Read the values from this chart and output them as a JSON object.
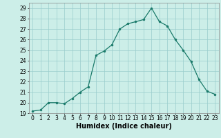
{
  "x": [
    0,
    1,
    2,
    3,
    4,
    5,
    6,
    7,
    8,
    9,
    10,
    11,
    12,
    13,
    14,
    15,
    16,
    17,
    18,
    19,
    20,
    21,
    22,
    23
  ],
  "y": [
    19.2,
    19.3,
    20.0,
    20.0,
    19.9,
    20.4,
    21.0,
    21.5,
    24.5,
    24.9,
    25.5,
    27.0,
    27.5,
    27.7,
    27.9,
    29.0,
    27.7,
    27.3,
    26.0,
    25.0,
    23.9,
    22.2,
    21.1,
    20.8
  ],
  "line_color": "#1a7a6a",
  "marker": "o",
  "marker_size": 2.2,
  "bg_color": "#cceee8",
  "grid_color": "#99cccc",
  "xlabel": "Humidex (Indice chaleur)",
  "xlim": [
    -0.5,
    23.5
  ],
  "ylim": [
    19,
    29.5
  ],
  "yticks": [
    19,
    20,
    21,
    22,
    23,
    24,
    25,
    26,
    27,
    28,
    29
  ],
  "xticks": [
    0,
    1,
    2,
    3,
    4,
    5,
    6,
    7,
    8,
    9,
    10,
    11,
    12,
    13,
    14,
    15,
    16,
    17,
    18,
    19,
    20,
    21,
    22,
    23
  ],
  "tick_fontsize": 5.5,
  "label_fontsize": 7.0
}
